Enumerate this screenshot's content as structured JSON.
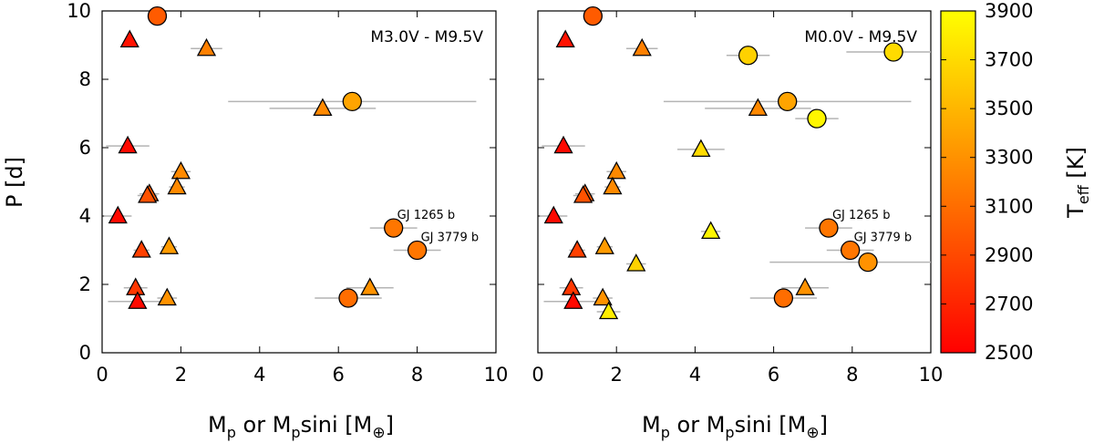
{
  "chart_data": {
    "type": "scatter",
    "xlabel": "M",
    "xlabel_sub1": "p",
    "xlabel_mid": " or M",
    "xlabel_sub2": "p",
    "xlabel_tail": "sini [M",
    "xlabel_earth": "⊕",
    "xlabel_close": "]",
    "ylabel": "P [d]",
    "xlim": [
      0,
      10
    ],
    "ylim": [
      0,
      10
    ],
    "x_ticks": [
      "0",
      "2",
      "4",
      "6",
      "8",
      "10"
    ],
    "y_ticks": [
      "0",
      "2",
      "4",
      "6",
      "8",
      "10"
    ],
    "colorbar": {
      "label": "T",
      "label_sub": "eff",
      "label_unit": " [K]",
      "range": [
        2500,
        3900
      ],
      "ticks": [
        "2500",
        "2700",
        "2900",
        "3100",
        "3300",
        "3500",
        "3700",
        "3900"
      ],
      "colors": [
        "#ff0000",
        "#ffff00"
      ]
    },
    "panels": [
      {
        "label": "M3.0V - M9.5V",
        "points": [
          {
            "x": 1.4,
            "y": 9.85,
            "teff": 3000,
            "marker": "circle",
            "xerr": 0
          },
          {
            "x": 0.7,
            "y": 9.15,
            "teff": 2600,
            "marker": "triangle",
            "xerr": 0
          },
          {
            "x": 2.65,
            "y": 8.9,
            "teff": 3200,
            "marker": "triangle",
            "xerr": 0.4
          },
          {
            "x": 6.35,
            "y": 7.35,
            "teff": 3400,
            "marker": "circle",
            "xerr": 3.15
          },
          {
            "x": 5.6,
            "y": 7.15,
            "teff": 3250,
            "marker": "triangle",
            "xerr": 1.35
          },
          {
            "x": 0.65,
            "y": 6.05,
            "teff": 2550,
            "marker": "triangle",
            "xerr": 0.55
          },
          {
            "x": 2.0,
            "y": 5.3,
            "teff": 3250,
            "marker": "triangle",
            "xerr": 0.25
          },
          {
            "x": 1.9,
            "y": 4.85,
            "teff": 3250,
            "marker": "triangle",
            "xerr": 0.2
          },
          {
            "x": 1.2,
            "y": 4.65,
            "teff": 3000,
            "marker": "triangle",
            "xerr": 0.25
          },
          {
            "x": 1.15,
            "y": 4.6,
            "teff": 2950,
            "marker": "triangle",
            "xerr": 0.25
          },
          {
            "x": 0.4,
            "y": 4.0,
            "teff": 2550,
            "marker": "triangle",
            "xerr": 0.35
          },
          {
            "x": 7.4,
            "y": 3.65,
            "teff": 3150,
            "marker": "circle",
            "xerr": 0.6,
            "name": "GJ 1265 b"
          },
          {
            "x": 1.7,
            "y": 3.1,
            "teff": 3350,
            "marker": "triangle",
            "xerr": 0.2
          },
          {
            "x": 1.0,
            "y": 3.0,
            "teff": 2850,
            "marker": "triangle",
            "xerr": 0.2
          },
          {
            "x": 8.0,
            "y": 3.0,
            "teff": 3150,
            "marker": "circle",
            "xerr": 0.6,
            "name": "GJ 3779 b"
          },
          {
            "x": 6.8,
            "y": 1.9,
            "teff": 3300,
            "marker": "triangle",
            "xerr": 0.6
          },
          {
            "x": 0.85,
            "y": 1.9,
            "teff": 2800,
            "marker": "triangle",
            "xerr": 0.3
          },
          {
            "x": 1.65,
            "y": 1.6,
            "teff": 3300,
            "marker": "triangle",
            "xerr": 0.25
          },
          {
            "x": 6.25,
            "y": 1.6,
            "teff": 3100,
            "marker": "circle",
            "xerr": 0.85
          },
          {
            "x": 0.9,
            "y": 1.5,
            "teff": 2550,
            "marker": "triangle",
            "xerr": 0.75
          }
        ]
      },
      {
        "label": "M0.0V - M9.5V",
        "points": [
          {
            "x": 1.4,
            "y": 9.85,
            "teff": 3000,
            "marker": "circle",
            "xerr": 0
          },
          {
            "x": 0.7,
            "y": 9.15,
            "teff": 2600,
            "marker": "triangle",
            "xerr": 0
          },
          {
            "x": 2.65,
            "y": 8.9,
            "teff": 3200,
            "marker": "triangle",
            "xerr": 0.4
          },
          {
            "x": 9.05,
            "y": 8.8,
            "teff": 3700,
            "marker": "circle",
            "xerr": 1.2
          },
          {
            "x": 5.35,
            "y": 8.7,
            "teff": 3650,
            "marker": "circle",
            "xerr": 0.55
          },
          {
            "x": 6.35,
            "y": 7.35,
            "teff": 3400,
            "marker": "circle",
            "xerr": 3.15
          },
          {
            "x": 5.6,
            "y": 7.15,
            "teff": 3250,
            "marker": "triangle",
            "xerr": 1.35
          },
          {
            "x": 7.1,
            "y": 6.85,
            "teff": 3850,
            "marker": "circle",
            "xerr": 0.55
          },
          {
            "x": 0.65,
            "y": 6.05,
            "teff": 2550,
            "marker": "triangle",
            "xerr": 0.55
          },
          {
            "x": 4.15,
            "y": 5.95,
            "teff": 3700,
            "marker": "triangle",
            "xerr": 0.6
          },
          {
            "x": 2.0,
            "y": 5.3,
            "teff": 3250,
            "marker": "triangle",
            "xerr": 0.25
          },
          {
            "x": 1.9,
            "y": 4.85,
            "teff": 3250,
            "marker": "triangle",
            "xerr": 0.2
          },
          {
            "x": 1.2,
            "y": 4.65,
            "teff": 3000,
            "marker": "triangle",
            "xerr": 0.25
          },
          {
            "x": 1.15,
            "y": 4.6,
            "teff": 2950,
            "marker": "triangle",
            "xerr": 0.25
          },
          {
            "x": 0.4,
            "y": 4.0,
            "teff": 2550,
            "marker": "triangle",
            "xerr": 0.35
          },
          {
            "x": 7.4,
            "y": 3.65,
            "teff": 3150,
            "marker": "circle",
            "xerr": 0.6,
            "name": "GJ 1265 b"
          },
          {
            "x": 4.4,
            "y": 3.55,
            "teff": 3850,
            "marker": "triangle",
            "xerr": 0.25
          },
          {
            "x": 1.7,
            "y": 3.1,
            "teff": 3350,
            "marker": "triangle",
            "xerr": 0.2
          },
          {
            "x": 1.0,
            "y": 3.0,
            "teff": 2850,
            "marker": "triangle",
            "xerr": 0.2
          },
          {
            "x": 7.95,
            "y": 3.0,
            "teff": 3150,
            "marker": "circle",
            "xerr": 0.6,
            "name": "GJ 3779 b"
          },
          {
            "x": 8.4,
            "y": 2.65,
            "teff": 3300,
            "marker": "circle",
            "xerr": 2.5
          },
          {
            "x": 2.5,
            "y": 2.6,
            "teff": 3650,
            "marker": "triangle",
            "xerr": 0.25
          },
          {
            "x": 6.8,
            "y": 1.9,
            "teff": 3300,
            "marker": "triangle",
            "xerr": 0.6
          },
          {
            "x": 0.85,
            "y": 1.9,
            "teff": 2800,
            "marker": "triangle",
            "xerr": 0.3
          },
          {
            "x": 1.65,
            "y": 1.6,
            "teff": 3300,
            "marker": "triangle",
            "xerr": 0.25
          },
          {
            "x": 6.25,
            "y": 1.6,
            "teff": 3100,
            "marker": "circle",
            "xerr": 0.85
          },
          {
            "x": 0.9,
            "y": 1.5,
            "teff": 2550,
            "marker": "triangle",
            "xerr": 0.75
          },
          {
            "x": 1.8,
            "y": 1.2,
            "teff": 3800,
            "marker": "triangle",
            "xerr": 0.3
          }
        ]
      }
    ]
  }
}
